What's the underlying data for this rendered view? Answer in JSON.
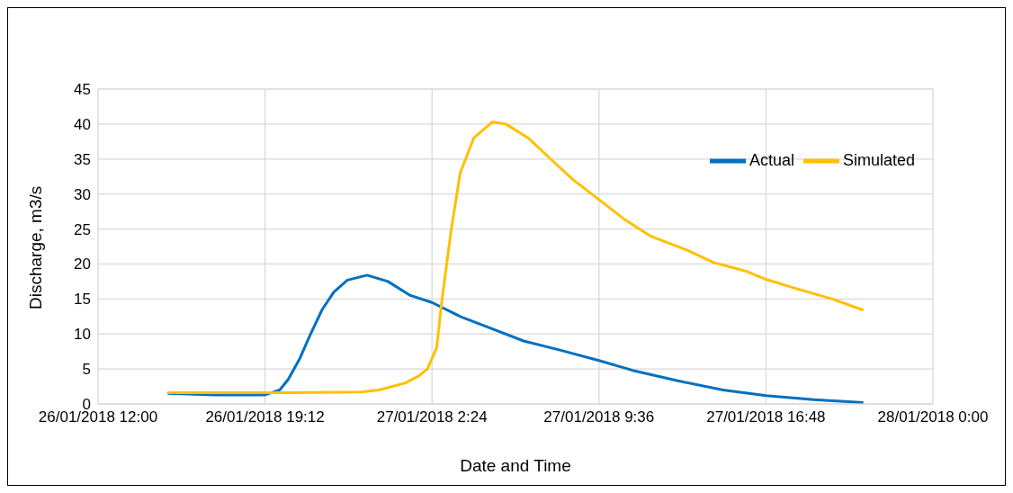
{
  "chart_data": {
    "type": "line",
    "xlabel": "Date and Time",
    "ylabel": "Discharge, m3/s",
    "xlim": [
      "2018-01-26T12:00",
      "2018-01-28T00:00"
    ],
    "xticks": [
      {
        "value": "2018-01-26T12:00",
        "label": "26/01/2018 12:00"
      },
      {
        "value": "2018-01-26T19:12",
        "label": "26/01/2018 19:12"
      },
      {
        "value": "2018-01-27T02:24",
        "label": "27/01/2018 2:24"
      },
      {
        "value": "2018-01-27T09:36",
        "label": "27/01/2018 9:36"
      },
      {
        "value": "2018-01-27T16:48",
        "label": "27/01/2018 16:48"
      },
      {
        "value": "2018-01-28T00:00",
        "label": "28/01/2018 0:00"
      }
    ],
    "ylim": [
      0,
      45
    ],
    "yticks": [
      0,
      5,
      10,
      15,
      20,
      25,
      30,
      35,
      40,
      45
    ],
    "grid": true,
    "legend": "top right",
    "marker": "none",
    "line_style": "solid",
    "series": [
      {
        "name": "Actual",
        "color": "#0070c0",
        "x": [
          "2018-01-26T15:00",
          "2018-01-26T17:00",
          "2018-01-26T19:12",
          "2018-01-26T19:50",
          "2018-01-26T20:12",
          "2018-01-26T20:42",
          "2018-01-26T21:10",
          "2018-01-26T21:40",
          "2018-01-26T22:10",
          "2018-01-26T22:45",
          "2018-01-26T23:36",
          "2018-01-27T00:30",
          "2018-01-27T01:28",
          "2018-01-27T02:24",
          "2018-01-27T03:37",
          "2018-01-27T04:47",
          "2018-01-27T06:21",
          "2018-01-27T07:55",
          "2018-01-27T09:36",
          "2018-01-27T11:03",
          "2018-01-27T13:00",
          "2018-01-27T14:57",
          "2018-01-27T16:48",
          "2018-01-27T18:52",
          "2018-01-27T21:00"
        ],
        "values": [
          1.5,
          1.3,
          1.3,
          2,
          3.5,
          6.5,
          10,
          13.5,
          16,
          17.7,
          18.4,
          17.5,
          15.5,
          14.5,
          12.5,
          11,
          9,
          7.7,
          6.2,
          4.8,
          3.3,
          2,
          1.2,
          0.6,
          0.2
        ]
      },
      {
        "name": "Simulated",
        "color": "#ffc000",
        "x": [
          "2018-01-26T15:00",
          "2018-01-26T19:12",
          "2018-01-26T20:12",
          "2018-01-26T23:20",
          "2018-01-27T00:07",
          "2018-01-27T01:15",
          "2018-01-27T01:50",
          "2018-01-27T02:12",
          "2018-01-27T02:36",
          "2018-01-27T02:50",
          "2018-01-27T03:14",
          "2018-01-27T03:37",
          "2018-01-27T04:12",
          "2018-01-27T05:00",
          "2018-01-27T05:35",
          "2018-01-27T06:33",
          "2018-01-27T07:31",
          "2018-01-27T08:30",
          "2018-01-27T09:36",
          "2018-01-27T10:39",
          "2018-01-27T11:49",
          "2018-01-27T13:23",
          "2018-01-27T14:33",
          "2018-01-27T15:55",
          "2018-01-27T16:48",
          "2018-01-27T18:05",
          "2018-01-27T19:40",
          "2018-01-27T21:00"
        ],
        "values": [
          1.6,
          1.6,
          1.6,
          1.7,
          2,
          3,
          4,
          5,
          8,
          15,
          25,
          33,
          38,
          40.3,
          40,
          38,
          35,
          32,
          29.2,
          26.5,
          24,
          22,
          20.2,
          19,
          17.8,
          16.5,
          15,
          13.4
        ]
      }
    ]
  }
}
